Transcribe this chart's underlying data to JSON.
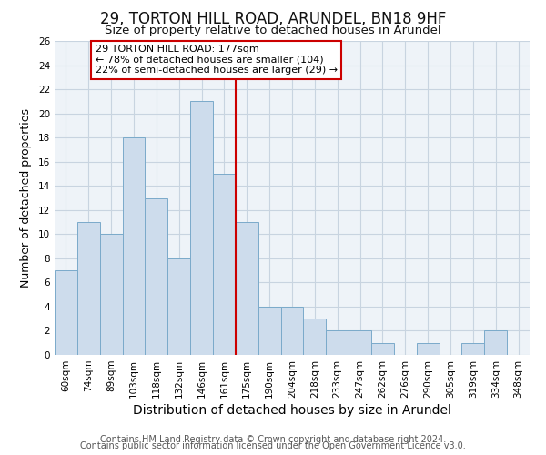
{
  "title": "29, TORTON HILL ROAD, ARUNDEL, BN18 9HF",
  "subtitle": "Size of property relative to detached houses in Arundel",
  "xlabel": "Distribution of detached houses by size in Arundel",
  "ylabel": "Number of detached properties",
  "bar_labels": [
    "60sqm",
    "74sqm",
    "89sqm",
    "103sqm",
    "118sqm",
    "132sqm",
    "146sqm",
    "161sqm",
    "175sqm",
    "190sqm",
    "204sqm",
    "218sqm",
    "233sqm",
    "247sqm",
    "262sqm",
    "276sqm",
    "290sqm",
    "305sqm",
    "319sqm",
    "334sqm",
    "348sqm"
  ],
  "bar_heights": [
    7,
    11,
    10,
    18,
    13,
    8,
    21,
    15,
    11,
    4,
    4,
    3,
    2,
    2,
    1,
    0,
    1,
    0,
    1,
    2,
    0
  ],
  "bar_color": "#cddcec",
  "bar_edge_color": "#7aaaca",
  "vline_x_idx": 8,
  "vline_color": "#cc0000",
  "annotation_line1": "29 TORTON HILL ROAD: 177sqm",
  "annotation_line2": "← 78% of detached houses are smaller (104)",
  "annotation_line3": "22% of semi-detached houses are larger (29) →",
  "annotation_box_edge_color": "#cc0000",
  "annotation_box_face_color": "#ffffff",
  "ylim": [
    0,
    26
  ],
  "yticks": [
    0,
    2,
    4,
    6,
    8,
    10,
    12,
    14,
    16,
    18,
    20,
    22,
    24,
    26
  ],
  "footer_line1": "Contains HM Land Registry data © Crown copyright and database right 2024.",
  "footer_line2": "Contains public sector information licensed under the Open Government Licence v3.0.",
  "background_color": "#ffffff",
  "grid_color": "#c8d4e0",
  "plot_bg_color": "#eef3f8",
  "title_fontsize": 12,
  "subtitle_fontsize": 9.5,
  "xlabel_fontsize": 10,
  "ylabel_fontsize": 9,
  "tick_fontsize": 7.5,
  "footer_fontsize": 7,
  "annotation_fontsize": 8
}
